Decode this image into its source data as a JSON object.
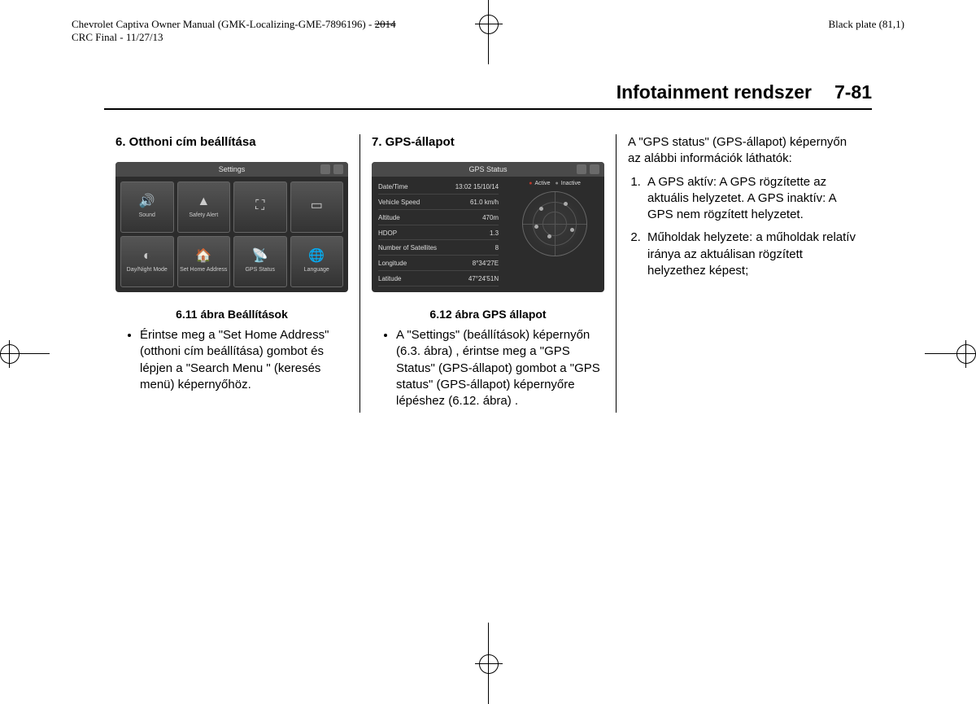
{
  "meta": {
    "left_line1": "Chevrolet Captiva Owner Manual (GMK-Localizing-GME-7896196) - ",
    "left_line1_strike": "2014",
    "left_line2": "CRC Final - 11/27/13",
    "right": "Black plate (81,1)"
  },
  "header": {
    "title": "Infotainment rendszer",
    "page": "7-81"
  },
  "col1": {
    "heading": "6. Otthoni cím beállítása",
    "fig": {
      "title": "Settings",
      "tiles": [
        {
          "icon": "🔊",
          "label": "Sound"
        },
        {
          "icon": "▲",
          "label": "Safety Alert"
        },
        {
          "icon": "⛶",
          "label": ""
        },
        {
          "icon": "▭",
          "label": ""
        },
        {
          "icon": "◐",
          "label": "Day/Night Mode"
        },
        {
          "icon": "🏠",
          "label": "Set Home Address"
        },
        {
          "icon": "📡",
          "label": "GPS Status"
        },
        {
          "icon": "🌐",
          "label": "Language"
        }
      ]
    },
    "caption": "6.11 ábra Beállítások",
    "bullet": "Érintse meg a \"Set Home Address\" (otthoni cím beállítása) gombot és lépjen a \"Search Menu \" (keresés menü) képernyőhöz."
  },
  "col2": {
    "heading": "7. GPS-állapot",
    "fig": {
      "title": "GPS Status",
      "rows": [
        {
          "k": "Date/Time",
          "v": "13:02    15/10/14"
        },
        {
          "k": "Vehicle Speed",
          "v": "61.0 km/h"
        },
        {
          "k": "Altitude",
          "v": "470m"
        },
        {
          "k": "HDOP",
          "v": "1.3"
        },
        {
          "k": "Number of Satellites",
          "v": "8"
        },
        {
          "k": "Longitude",
          "v": "8°34'27E"
        },
        {
          "k": "Latitude",
          "v": "47°24'51N"
        }
      ],
      "legend_a": "Active",
      "legend_b": "Inactive"
    },
    "caption": "6.12 ábra GPS állapot",
    "bullet": "A \"Settings\" (beállítások) képernyőn (6.3. ábra) , érintse meg a \"GPS Status\" (GPS-állapot) gombot a \"GPS status\" (GPS-állapot) képernyőre lépéshez (6.12. ábra) ."
  },
  "col3": {
    "intro": "A \"GPS status\" (GPS-állapot) képernyőn az alábbi információk láthatók:",
    "items": [
      "A GPS aktív: A GPS rögzítette az aktuális helyzetet. A GPS inaktív: A GPS nem rögzített helyzetet.",
      "Műholdak helyzete: a műholdak relatív iránya az aktuálisan rögzített helyzethez képest;"
    ]
  }
}
